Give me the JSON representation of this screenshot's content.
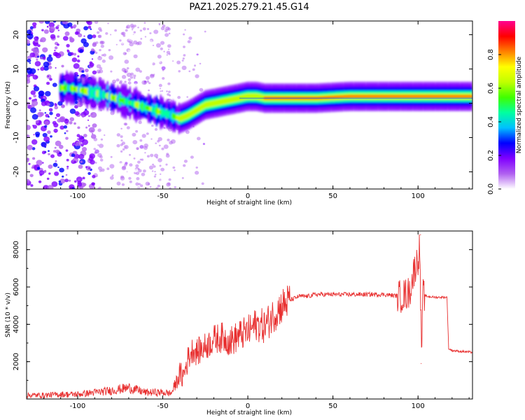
{
  "title": "PAZ1.2025.279.21.45.G14",
  "chart_data": [
    {
      "type": "heatmap",
      "name": "spectrogram",
      "title": "PAZ1.2025.279.21.45.G14",
      "xlabel": "Height of straight line (km)",
      "ylabel": "Frequency (Hz)",
      "xlim": [
        -130,
        132
      ],
      "ylim": [
        -25,
        24
      ],
      "xticks": [
        -100,
        -50,
        0,
        50,
        100
      ],
      "xtick_labels": [
        "-100",
        "-50",
        "0",
        "50",
        "100"
      ],
      "yticks": [
        -20,
        -10,
        0,
        10,
        20
      ],
      "ytick_labels": [
        "-20",
        "-10",
        "0",
        "10",
        "20"
      ],
      "ridge": {
        "description": "frequency of peak spectral amplitude vs height",
        "x": [
          -105,
          -95,
          -85,
          -75,
          -65,
          -55,
          -45,
          -40,
          -35,
          -30,
          -25,
          -20,
          -15,
          -10,
          -5,
          0,
          5,
          10,
          20,
          40,
          60,
          80,
          100,
          120,
          132
        ],
        "y": [
          4.5,
          3.5,
          2.5,
          1.0,
          -0.5,
          -2.0,
          -3.5,
          -4.5,
          -3.5,
          -2.0,
          -0.5,
          0.0,
          0.5,
          1.0,
          1.5,
          2.0,
          2.0,
          1.5,
          1.5,
          1.5,
          2.0,
          2.0,
          2.0,
          2.0,
          2.0
        ]
      },
      "horizontal_line_y": 1.5,
      "colorbar": {
        "label": "Normalized spectral amplitude",
        "range": [
          0,
          1
        ],
        "ticks": [
          0.0,
          0.2,
          0.4,
          0.6,
          0.8
        ],
        "tick_labels": [
          "0.0",
          "0.2",
          "0.4",
          "0.6",
          "0.8"
        ],
        "colormap": [
          "#ffffff",
          "#b060f0",
          "#8000ff",
          "#0000ff",
          "#00c0ff",
          "#00ffa0",
          "#40ff00",
          "#c0ff00",
          "#ffff00",
          "#ff8000",
          "#ff0000",
          "#ff0090"
        ]
      }
    },
    {
      "type": "line",
      "name": "snr",
      "xlabel": "Height of straight line (km)",
      "ylabel": "SNR (10 * v/v)",
      "xlim": [
        -130,
        132
      ],
      "ylim": [
        0,
        9000
      ],
      "xticks": [
        -100,
        -50,
        0,
        50,
        100
      ],
      "xtick_labels": [
        "-100",
        "-50",
        "0",
        "50",
        "100"
      ],
      "yticks": [
        2000,
        4000,
        6000,
        8000
      ],
      "ytick_labels": [
        "2000",
        "4000",
        "6000",
        "8000"
      ],
      "color": "#e83030",
      "x": [
        -130,
        -120,
        -110,
        -100,
        -90,
        -80,
        -70,
        -60,
        -50,
        -45,
        -40,
        -38,
        -35,
        -32,
        -30,
        -25,
        -20,
        -15,
        -10,
        -5,
        0,
        5,
        10,
        15,
        20,
        25,
        30,
        35,
        40,
        50,
        60,
        70,
        80,
        90,
        95,
        98,
        100,
        101,
        102,
        103,
        105,
        110,
        115,
        117,
        118,
        120,
        125,
        132
      ],
      "y": [
        200,
        200,
        250,
        250,
        350,
        450,
        600,
        350,
        350,
        300,
        1300,
        1200,
        2200,
        2700,
        2500,
        2800,
        3200,
        3300,
        3100,
        3400,
        3600,
        4000,
        3900,
        4500,
        5000,
        5300,
        5500,
        5500,
        5600,
        5600,
        5600,
        5600,
        5600,
        5500,
        5700,
        7000,
        7500,
        8200,
        2500,
        5600,
        5500,
        5450,
        5450,
        5450,
        2700,
        2600,
        2550,
        2500
      ],
      "highlight": [
        {
          "x": 101.5,
          "y": 8800
        },
        {
          "x": 101.8,
          "y": 1900
        }
      ]
    }
  ]
}
